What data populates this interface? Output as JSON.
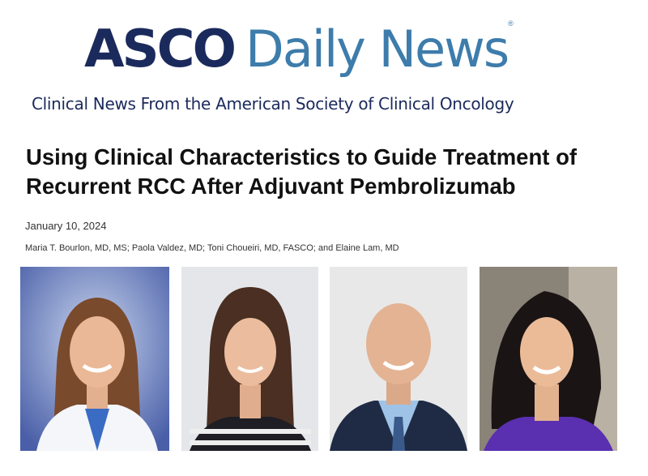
{
  "masthead": {
    "logo_primary": "ASCO",
    "logo_secondary": "Daily News",
    "registered_mark": "®",
    "tagline": "Clinical News From the American Society of Clinical Oncology",
    "colors": {
      "navy": "#1b2a5c",
      "blue": "#3d7cab"
    }
  },
  "article": {
    "title": "Using Clinical Characteristics to Guide Treatment of Recurrent RCC After Adjuvant Pembrolizumab",
    "date": "January 10, 2024",
    "authors": "Maria T. Bourlon, MD, MS; Paola Valdez, MD; Toni Choueiri, MD, FASCO; and Elaine Lam, MD"
  },
  "photos": [
    "author-photo",
    "author-photo",
    "author-photo",
    "author-photo"
  ]
}
